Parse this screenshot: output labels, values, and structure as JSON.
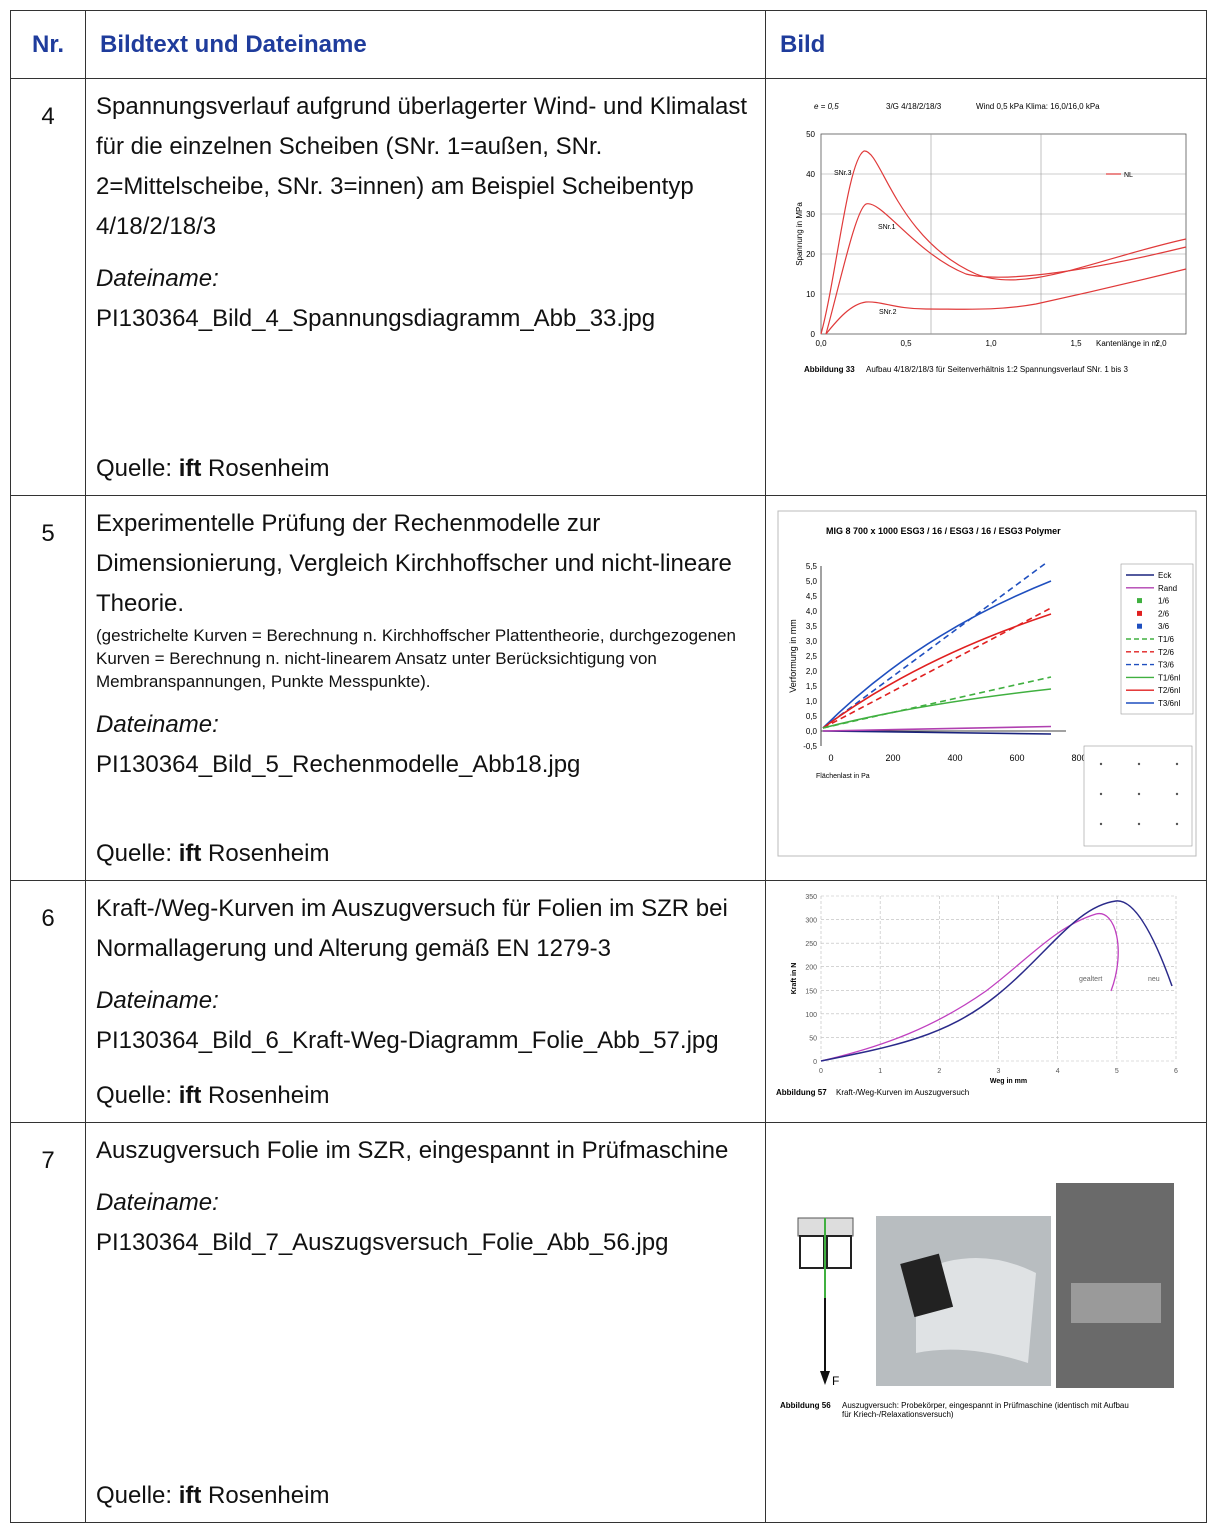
{
  "header": {
    "nr": "Nr.",
    "text": "Bildtext und Dateiname",
    "image": "Bild"
  },
  "rows": [
    {
      "nr": "4",
      "description": "Spannungsverlauf aufgrund überlagerter Wind- und Klimalast für die einzelnen Scheiben (SNr. 1=außen, SNr. 2=Mittelscheibe, SNr. 3=innen) am Beispiel Scheibentyp 4/18/2/18/3",
      "filename_label": "Dateiname:",
      "filename": "PI130364_Bild_4_Spannungsdiagramm_Abb_33.jpg",
      "source": {
        "prefix": "Quelle:",
        "bold": "ift",
        "suffix": "Rosenheim"
      },
      "figure": {
        "header": [
          "e = 0,5",
          "3/G 4/18/2/18/3",
          "Wind 0,5 kPa  Klima: 16,0/16,0 kPa"
        ],
        "y_label": "Spannung in MPa",
        "x_label": "Kantenlänge in m",
        "yticks": [
          "0",
          "10",
          "20",
          "30",
          "40",
          "50"
        ],
        "xticks": [
          "0,0",
          "0,5",
          "1,0",
          "1,5",
          "2,0"
        ],
        "curve_labels": [
          "SNr.3",
          "SNr.1",
          "SNr.2"
        ],
        "legend": "NL",
        "caption_label": "Abbildung 33",
        "caption": "Aufbau 4/18/2/18/3 für Seitenverhältnis 1:2 Spannungsverlauf SNr. 1 bis 3"
      }
    },
    {
      "nr": "5",
      "description": "Experimentelle Prüfung der Rechenmodelle zur Dimensionierung, Vergleich Kirchhoffscher und nicht-lineare Theorie.",
      "note": "(gestrichelte Kurven = Berechnung n. Kirchhoffscher Plattentheorie, durchgezogenen Kurven = Berechnung n. nicht-linearem Ansatz unter Berücksichtigung von Membranspannungen, Punkte Messpunkte).",
      "filename_label": "Dateiname:",
      "filename": "PI130364_Bild_5_Rechenmodelle_Abb18.jpg",
      "source": {
        "prefix": "Quelle:",
        "bold": "ift",
        "suffix": "Rosenheim"
      },
      "figure": {
        "title": "MIG 8  700 x 1000  ESG3 / 16 / ESG3 / 16 / ESG3  Polymer",
        "y_label": "Verformung in mm",
        "x_label": "Flächenlast in Pa",
        "yticks": [
          "5,5",
          "5,0",
          "4,5",
          "4,0",
          "3,5",
          "3,0",
          "2,5",
          "2,0",
          "1,5",
          "1,0",
          "0,5",
          "0,0",
          "-0,5"
        ],
        "xticks": [
          "0",
          "200",
          "400",
          "600",
          "800"
        ],
        "legend": [
          "Eck",
          "Rand",
          "1/6",
          "2/6",
          "3/6",
          "T1/6",
          "T2/6",
          "T3/6",
          "T1/6nl",
          "T2/6nl",
          "T3/6nl"
        ]
      }
    },
    {
      "nr": "6",
      "description": "Kraft-/Weg-Kurven im Auszugversuch für Folien im SZR bei Normallagerung und Alterung gemäß EN 1279-3",
      "filename_label": "Dateiname:",
      "filename": "PI130364_Bild_6_Kraft-Weg-Diagramm_Folie_Abb_57.jpg",
      "source": {
        "prefix": "Quelle:",
        "bold": "ift",
        "suffix": "Rosenheim"
      },
      "figure": {
        "y_label": "Kraft in N",
        "x_label": "Weg in mm",
        "yticks": [
          "350",
          "300",
          "250",
          "200",
          "150",
          "100",
          "50",
          "0"
        ],
        "xticks": [
          "0",
          "1",
          "2",
          "3",
          "4",
          "5",
          "6"
        ],
        "curve_labels": [
          "gealtert",
          "neu"
        ],
        "caption_label": "Abbildung 57",
        "caption": "Kraft-/Weg-Kurven im Auszugversuch"
      }
    },
    {
      "nr": "7",
      "description": "Auszugversuch Folie im SZR, eingespannt in Prüfmaschine",
      "filename_label": "Dateiname:",
      "filename": "PI130364_Bild_7_Auszugsversuch_Folie_Abb_56.jpg",
      "source": {
        "prefix": "Quelle:",
        "bold": "ift",
        "suffix": "Rosenheim"
      },
      "figure": {
        "force": "F",
        "caption_label": "Abbildung 56",
        "caption": "Auszugversuch: Probekörper, eingespannt in Prüfmaschine (identisch mit Aufbau für Kriech-/Relaxationsversuch)"
      }
    }
  ]
}
